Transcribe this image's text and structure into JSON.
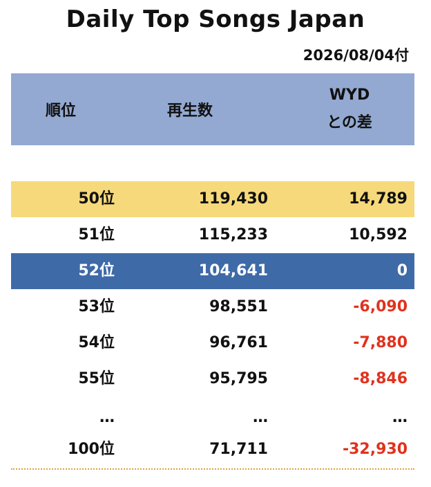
{
  "title": "Daily Top Songs Japan",
  "date": "2026/08/04付",
  "colors": {
    "header_bg": "#93a9d1",
    "highlight_gold": "#f6d97a",
    "highlight_blue": "#3f6aa8",
    "negative": "#e0321e",
    "rule": "#d9a441"
  },
  "headers": {
    "rank": "順位",
    "plays": "再生数",
    "diff_line1": "WYD",
    "diff_line2": "との差"
  },
  "rows": [
    {
      "rank": "50位",
      "plays": "119,430",
      "diff": "14,789"
    },
    {
      "rank": "51位",
      "plays": "115,233",
      "diff": "10,592"
    },
    {
      "rank": "52位",
      "plays": "104,641",
      "diff": "0"
    },
    {
      "rank": "53位",
      "plays": "98,551",
      "diff": "-6,090"
    },
    {
      "rank": "54位",
      "plays": "96,761",
      "diff": "-7,880"
    },
    {
      "rank": "55位",
      "plays": "95,795",
      "diff": "-8,846"
    },
    {
      "rank": "…",
      "plays": "…",
      "diff": "…"
    },
    {
      "rank": "100位",
      "plays": "71,711",
      "diff": "-32,930"
    }
  ]
}
